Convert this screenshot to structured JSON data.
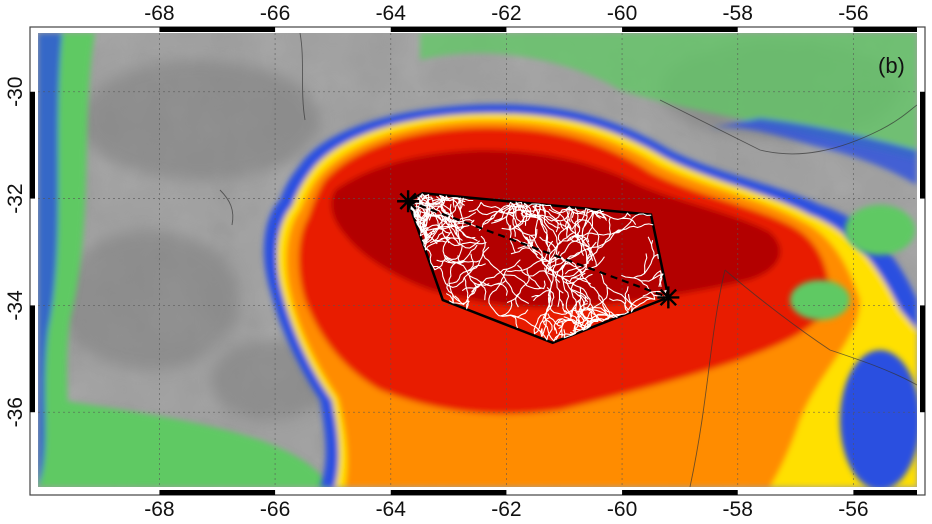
{
  "panel_label": "(b)",
  "axes": {
    "lon_ticks": [
      -68,
      -66,
      -64,
      -62,
      -60,
      -58,
      -56
    ],
    "lon_labels": [
      "-68",
      "-66",
      "-64",
      "-62",
      "-60",
      "-58",
      "-56"
    ],
    "lat_ticks": [
      -30,
      -32,
      -34,
      -36
    ],
    "lat_labels": [
      "-30",
      "-32",
      "-34",
      "-36"
    ],
    "lon_range": [
      -70.1,
      -54.9
    ],
    "lat_range": [
      -37.4,
      -28.9
    ]
  },
  "storm": {
    "colors": {
      "land_gray": "#9e9e9e",
      "green": "#5fc964",
      "blue": "#2a4fe0",
      "yellow": "#ffe000",
      "orange": "#ff8c00",
      "red": "#e81e00",
      "dark_red": "#b30000"
    }
  },
  "flash": {
    "endpoints": [
      {
        "lon": -63.7,
        "lat": -32.05
      },
      {
        "lon": -59.2,
        "lat": -33.85
      }
    ],
    "hull": [
      [
        -63.45,
        -31.9
      ],
      [
        -59.5,
        -32.3
      ],
      [
        -59.2,
        -33.85
      ],
      [
        -61.2,
        -34.7
      ],
      [
        -63.1,
        -33.9
      ],
      [
        -63.7,
        -32.05
      ]
    ],
    "channel_color": "#ffffff"
  }
}
